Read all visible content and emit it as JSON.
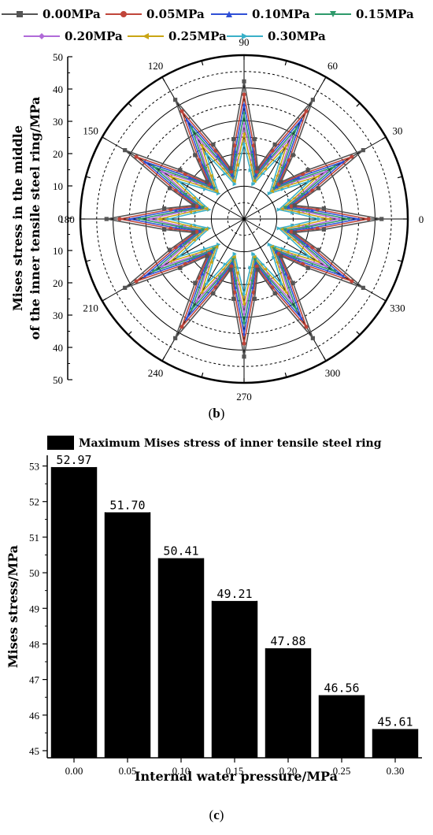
{
  "chart_data": [
    {
      "type": "line",
      "subtype": "polar",
      "ylabel": "Mises stress in the middle\nof the inner tensile steel ring/MPa",
      "radial_ticks": [
        "50",
        "40",
        "30",
        "20",
        "10",
        "0",
        "10",
        "20",
        "30",
        "40",
        "50"
      ],
      "radial_range": [
        0,
        50
      ],
      "angle_ticks": [
        "0",
        "30",
        "60",
        "90",
        "120",
        "150",
        "180",
        "210",
        "240",
        "270",
        "300",
        "330"
      ],
      "angle_tick_values": [
        0,
        30,
        60,
        90,
        120,
        150,
        180,
        210,
        240,
        270,
        300,
        330
      ],
      "caption_prefix": "(",
      "caption_letter": "b",
      "caption_suffix": ")",
      "legend_placement": "top",
      "series": [
        {
          "name": "0.00MPa",
          "color": "#555555",
          "marker": "square",
          "peak": 42,
          "trough": 16
        },
        {
          "name": "0.05MPa",
          "color": "#c0453a",
          "marker": "circle",
          "peak": 38,
          "trough": 15
        },
        {
          "name": "0.10MPa",
          "color": "#2f4fd6",
          "marker": "triangle",
          "peak": 35,
          "trough": 14
        },
        {
          "name": "0.15MPa",
          "color": "#2e9a6b",
          "marker": "triangle-down",
          "peak": 32,
          "trough": 13
        },
        {
          "name": "0.20MPa",
          "color": "#b06ad8",
          "marker": "diamond",
          "peak": 29,
          "trough": 13
        },
        {
          "name": "0.25MPa",
          "color": "#c9a514",
          "marker": "triangle-left",
          "peak": 26,
          "trough": 12
        },
        {
          "name": "0.30MPa",
          "color": "#3ab0c8",
          "marker": "triangle-right",
          "peak": 23,
          "trough": 11
        }
      ]
    },
    {
      "type": "bar",
      "legend": "Maximum Mises stress of inner tensile steel ring",
      "categories": [
        "0.00",
        "0.05",
        "0.10",
        "0.15",
        "0.20",
        "0.25",
        "0.30"
      ],
      "values": [
        52.97,
        51.7,
        50.41,
        49.21,
        47.88,
        46.56,
        45.61
      ],
      "value_labels": [
        "52.97",
        "51.70",
        "50.41",
        "49.21",
        "47.88",
        "46.56",
        "45.61"
      ],
      "xlabel": "Internal water pressure/MPa",
      "ylabel": "Mises stress/MPa",
      "ylim": [
        44.8,
        53.3
      ],
      "yticks": [
        45,
        46,
        47,
        48,
        49,
        50,
        51,
        52,
        53
      ],
      "ytick_labels": [
        "45",
        "46",
        "47",
        "48",
        "49",
        "50",
        "51",
        "52",
        "53"
      ],
      "bar_color": "#000000",
      "caption_prefix": "(",
      "caption_letter": "c",
      "caption_suffix": ")"
    }
  ]
}
